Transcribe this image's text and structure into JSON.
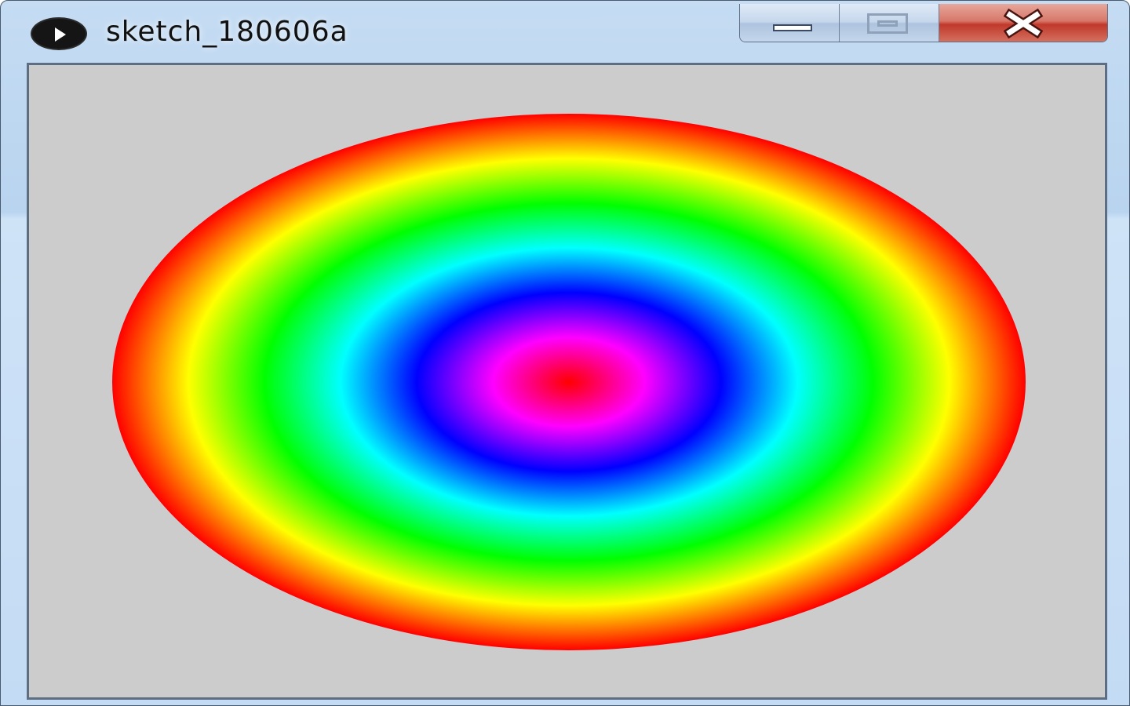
{
  "window": {
    "title": "sketch_180606a",
    "icon": "processing-play-icon"
  },
  "controls": {
    "minimize_icon": "minimize-icon",
    "maximize_icon": "maximize-icon",
    "close_icon": "close-icon"
  },
  "canvas": {
    "background_color": "#cccccc",
    "gradient_type": "radial-hue",
    "gradient_stops": [
      "#ff0000",
      "#ff00ff",
      "#0000ff",
      "#00ffff",
      "#00ff00",
      "#ffff00",
      "#ff0000"
    ]
  }
}
